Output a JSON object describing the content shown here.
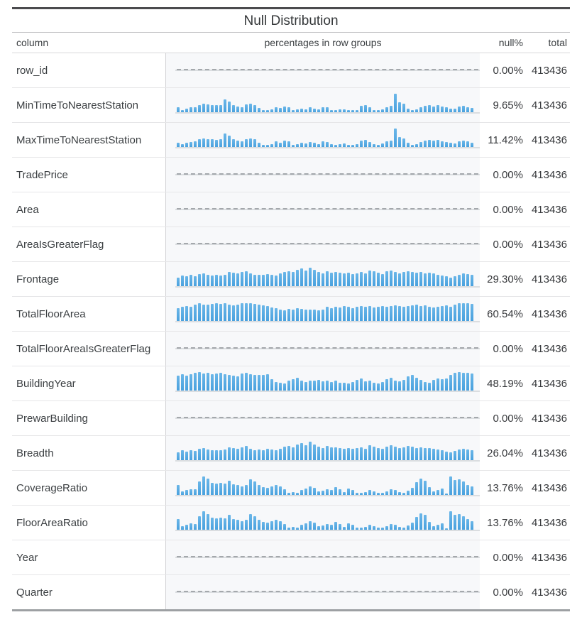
{
  "header": {
    "column": "column",
    "chart": "percentages in row groups",
    "null_pct": "null%",
    "total": "total"
  },
  "colors": {
    "bar_blue": "#54a8e3",
    "baseline_gray": "#dadde0",
    "dash_gray": "#a4a8ac",
    "top_border": "#4b4b4e",
    "bottom_border": "#9da0a3"
  },
  "chart_data": {
    "type": "table",
    "title": "Null Distribution",
    "columns": [
      "column",
      "percentages in row groups",
      "null%",
      "total"
    ],
    "histogram_note": "per-row sparkline histogram of null percentage across row groups; dashed line means 0% nulls in all groups; bar heights are percent of row maximum",
    "rows": [
      {
        "name": "row_id",
        "null_pct": "0.00%",
        "total": "413436",
        "histogram": null
      },
      {
        "name": "MinTimeToNearestStation",
        "null_pct": "9.65%",
        "total": "413436",
        "histogram": [
          25,
          12,
          20,
          25,
          28,
          40,
          45,
          42,
          40,
          38,
          40,
          68,
          58,
          40,
          32,
          28,
          42,
          45,
          40,
          22,
          10,
          10,
          14,
          28,
          22,
          32,
          28,
          12,
          14,
          20,
          16,
          25,
          20,
          14,
          28,
          25,
          12,
          10,
          14,
          16,
          12,
          10,
          12,
          35,
          38,
          25,
          12,
          10,
          16,
          28,
          35,
          100,
          52,
          45,
          20,
          12,
          14,
          25,
          35,
          38,
          32,
          38,
          30,
          25,
          20,
          18,
          30,
          35,
          28,
          22
        ]
      },
      {
        "name": "MaxTimeToNearestStation",
        "null_pct": "11.42%",
        "total": "413436",
        "histogram": [
          22,
          14,
          22,
          26,
          30,
          42,
          46,
          44,
          42,
          40,
          42,
          72,
          60,
          42,
          34,
          30,
          44,
          46,
          42,
          24,
          12,
          10,
          15,
          30,
          24,
          34,
          30,
          12,
          15,
          22,
          18,
          26,
          22,
          15,
          30,
          26,
          14,
          10,
          15,
          18,
          12,
          10,
          14,
          36,
          40,
          26,
          14,
          10,
          18,
          30,
          36,
          100,
          54,
          46,
          22,
          12,
          15,
          26,
          36,
          40,
          34,
          40,
          32,
          26,
          22,
          18,
          32,
          36,
          30,
          24
        ]
      },
      {
        "name": "TradePrice",
        "null_pct": "0.00%",
        "total": "413436",
        "histogram": null
      },
      {
        "name": "Area",
        "null_pct": "0.00%",
        "total": "413436",
        "histogram": null
      },
      {
        "name": "AreaIsGreaterFlag",
        "null_pct": "0.00%",
        "total": "413436",
        "histogram": null
      },
      {
        "name": "Frontage",
        "null_pct": "29.30%",
        "total": "413436",
        "histogram": [
          48,
          58,
          52,
          60,
          55,
          65,
          70,
          62,
          58,
          60,
          58,
          62,
          75,
          72,
          68,
          75,
          80,
          68,
          60,
          62,
          60,
          65,
          62,
          58,
          68,
          78,
          82,
          76,
          88,
          95,
          85,
          100,
          90,
          78,
          70,
          80,
          74,
          76,
          72,
          68,
          72,
          66,
          70,
          76,
          68,
          85,
          80,
          72,
          66,
          80,
          85,
          78,
          70,
          75,
          82,
          78,
          72,
          75,
          70,
          72,
          68,
          62,
          58,
          52,
          48,
          55,
          62,
          68,
          65,
          60
        ]
      },
      {
        "name": "TotalFloorArea",
        "null_pct": "60.54%",
        "total": "413436",
        "histogram": [
          70,
          78,
          80,
          78,
          88,
          95,
          90,
          88,
          92,
          95,
          92,
          95,
          90,
          85,
          88,
          95,
          98,
          95,
          92,
          90,
          85,
          80,
          72,
          68,
          62,
          58,
          65,
          60,
          70,
          65,
          62,
          60,
          62,
          58,
          60,
          75,
          68,
          78,
          72,
          80,
          75,
          70,
          78,
          82,
          76,
          80,
          72,
          76,
          82,
          78,
          80,
          85,
          80,
          76,
          80,
          84,
          88,
          82,
          86,
          78,
          72,
          76,
          80,
          84,
          78,
          88,
          95,
          98,
          96,
          94
        ]
      },
      {
        "name": "TotalFloorAreaIsGreaterFlag",
        "null_pct": "0.00%",
        "total": "413436",
        "histogram": null
      },
      {
        "name": "BuildingYear",
        "null_pct": "48.19%",
        "total": "413436",
        "histogram": [
          80,
          88,
          82,
          90,
          96,
          100,
          92,
          95,
          90,
          92,
          95,
          90,
          85,
          80,
          75,
          92,
          96,
          88,
          84,
          86,
          84,
          88,
          60,
          48,
          42,
          40,
          55,
          62,
          68,
          55,
          48,
          52,
          55,
          58,
          50,
          54,
          46,
          52,
          44,
          42,
          40,
          46,
          56,
          66,
          50,
          55,
          44,
          40,
          48,
          62,
          70,
          55,
          50,
          58,
          76,
          84,
          68,
          58,
          48,
          44,
          56,
          64,
          60,
          66,
          85,
          95,
          100,
          98,
          96,
          94
        ]
      },
      {
        "name": "PrewarBuilding",
        "null_pct": "0.00%",
        "total": "413436",
        "histogram": null
      },
      {
        "name": "Breadth",
        "null_pct": "26.04%",
        "total": "413436",
        "histogram": [
          42,
          52,
          46,
          54,
          50,
          60,
          66,
          58,
          52,
          55,
          52,
          58,
          70,
          66,
          62,
          70,
          76,
          62,
          55,
          58,
          55,
          60,
          58,
          52,
          62,
          72,
          76,
          70,
          84,
          92,
          80,
          100,
          86,
          72,
          64,
          76,
          68,
          70,
          66,
          62,
          66,
          60,
          64,
          70,
          62,
          80,
          74,
          66,
          60,
          74,
          80,
          72,
          64,
          70,
          76,
          72,
          66,
          70,
          64,
          66,
          62,
          56,
          52,
          46,
          42,
          50,
          56,
          62,
          58,
          54
        ]
      },
      {
        "name": "CoverageRatio",
        "null_pct": "13.76%",
        "total": "413436",
        "histogram": [
          55,
          18,
          28,
          32,
          30,
          72,
          100,
          88,
          65,
          60,
          65,
          60,
          78,
          58,
          52,
          48,
          52,
          85,
          72,
          52,
          42,
          38,
          48,
          52,
          48,
          32,
          12,
          15,
          10,
          25,
          35,
          48,
          38,
          18,
          22,
          30,
          25,
          42,
          32,
          15,
          35,
          28,
          12,
          10,
          15,
          25,
          20,
          12,
          10,
          18,
          32,
          25,
          15,
          12,
          22,
          38,
          68,
          88,
          78,
          42,
          18,
          25,
          35,
          8,
          100,
          80,
          85,
          72,
          55,
          48
        ]
      },
      {
        "name": "FloorAreaRatio",
        "null_pct": "13.76%",
        "total": "413436",
        "histogram": [
          58,
          18,
          28,
          34,
          30,
          74,
          100,
          86,
          66,
          60,
          66,
          62,
          80,
          58,
          54,
          48,
          54,
          86,
          74,
          52,
          42,
          38,
          48,
          54,
          48,
          32,
          12,
          16,
          10,
          26,
          36,
          48,
          38,
          18,
          22,
          30,
          26,
          42,
          32,
          16,
          36,
          28,
          12,
          10,
          16,
          26,
          20,
          12,
          10,
          18,
          32,
          26,
          16,
          12,
          22,
          38,
          70,
          88,
          80,
          42,
          18,
          26,
          36,
          8,
          100,
          82,
          86,
          74,
          56,
          48
        ]
      },
      {
        "name": "Year",
        "null_pct": "0.00%",
        "total": "413436",
        "histogram": null
      },
      {
        "name": "Quarter",
        "null_pct": "0.00%",
        "total": "413436",
        "histogram": null
      }
    ]
  }
}
